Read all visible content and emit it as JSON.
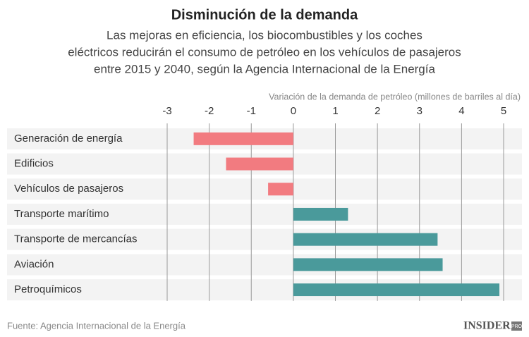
{
  "chart_data": {
    "type": "bar",
    "orientation": "horizontal",
    "title": "Disminución de la demanda",
    "subtitle": [
      "Las mejoras en eficiencia, los biocombustibles y los coches",
      "eléctricos reducirán el consumo de petróleo en los vehículos de pasajeros",
      "entre 2015 y 2040, según la Agencia Internacional de la Energía"
    ],
    "x_label": "Variación de la demanda de petróleo (millones de barriles al día)",
    "categories": [
      "Generación de energía",
      "Edificios",
      "Vehículos de pasajeros",
      "Transporte marítimo",
      "Transporte de mercancías",
      "Aviación",
      "Petroquímicos"
    ],
    "values": [
      -2.37,
      -1.6,
      -0.6,
      1.3,
      3.43,
      3.55,
      4.9
    ],
    "negative_color": "#f27b80",
    "positive_color": "#4a9a9b",
    "xlim": [
      -3,
      5
    ],
    "xticks": [
      -3,
      -2,
      -1,
      0,
      1,
      2,
      3,
      4,
      5
    ],
    "grid": true,
    "source": "Fuente: Agencia Internacional de la Energía",
    "logo": "INSIDER",
    "logo_badge": "PRO"
  }
}
